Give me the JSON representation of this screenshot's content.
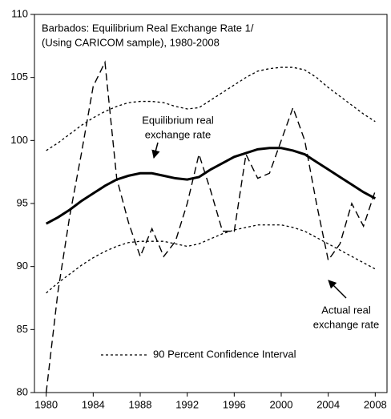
{
  "chart_data": {
    "type": "line",
    "title": [
      "Barbados: Equilibrium Real Exchange Rate 1/",
      "(Using CARICOM sample), 1980-2008"
    ],
    "x": [
      1980,
      1981,
      1982,
      1983,
      1984,
      1985,
      1986,
      1987,
      1988,
      1989,
      1990,
      1991,
      1992,
      1993,
      1994,
      1995,
      1996,
      1997,
      1998,
      1999,
      2000,
      2001,
      2002,
      2003,
      2004,
      2005,
      2006,
      2007,
      2008
    ],
    "xlim": [
      1979,
      2009
    ],
    "xticks": [
      1980,
      1984,
      1988,
      1992,
      1996,
      2000,
      2004,
      2008
    ],
    "ylim": [
      80,
      110
    ],
    "yticks": [
      80,
      85,
      90,
      95,
      100,
      105,
      110
    ],
    "series": [
      {
        "style": "dashed",
        "color": "#000000",
        "values": [
          80,
          88,
          94,
          99,
          104.3,
          106.2,
          97,
          93.5,
          90.8,
          93,
          90.8,
          92,
          95,
          98.9,
          96,
          92.8,
          92.8,
          98.9,
          97,
          97.4,
          100,
          102.6,
          100,
          95,
          90.5,
          91.8,
          95,
          93.2,
          96
        ]
      },
      {
        "style": "solid",
        "color": "#000000",
        "values": [
          93.4,
          93.9,
          94.5,
          95.2,
          95.8,
          96.4,
          96.9,
          97.2,
          97.4,
          97.4,
          97.2,
          97.0,
          96.9,
          97.1,
          97.7,
          98.2,
          98.7,
          99.0,
          99.3,
          99.4,
          99.4,
          99.2,
          98.9,
          98.3,
          97.7,
          97.1,
          96.5,
          95.9,
          95.4
        ]
      }
    ],
    "confidence_interval": {
      "name": "90 Percent Confidence Interval",
      "style": "dotted",
      "color": "#000000",
      "upper": [
        99.2,
        99.8,
        100.5,
        101.2,
        101.8,
        102.3,
        102.7,
        103.0,
        103.1,
        103.1,
        103.0,
        102.7,
        102.5,
        102.6,
        103.2,
        103.8,
        104.4,
        105.0,
        105.5,
        105.7,
        105.8,
        105.8,
        105.6,
        105.0,
        104.2,
        103.5,
        102.8,
        102.1,
        101.5
      ],
      "lower": [
        87.9,
        88.7,
        89.4,
        90.1,
        90.7,
        91.2,
        91.6,
        91.9,
        92.0,
        92.0,
        92.0,
        91.8,
        91.6,
        91.8,
        92.2,
        92.6,
        92.9,
        93.1,
        93.3,
        93.3,
        93.3,
        93.1,
        92.8,
        92.3,
        91.8,
        91.3,
        90.8,
        90.3,
        89.8
      ]
    },
    "annotations": [
      {
        "lines": [
          "Equilibrium real",
          "exchange rate"
        ]
      },
      {
        "lines": [
          "Actual real",
          "exchange rate"
        ]
      }
    ],
    "legend": "bottom"
  }
}
